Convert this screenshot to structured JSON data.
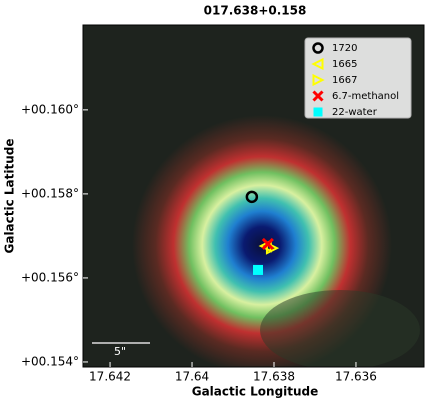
{
  "chart_data": {
    "type": "scatter",
    "title": "017.638+0.158",
    "xlabel": "Galactic Longitude",
    "ylabel": "Galactic Latitude",
    "xlim": [
      17.64266,
      17.63434
    ],
    "ylim": [
      0.15388,
      0.16202
    ],
    "xticks": [
      17.642,
      17.64,
      17.638,
      17.636
    ],
    "yticks": [
      {
        "value": 0.16,
        "label": "+00.160°"
      },
      {
        "value": 0.158,
        "label": "+00.158°"
      },
      {
        "value": 0.156,
        "label": "+00.156°"
      },
      {
        "value": 0.154,
        "label": "+00.154°"
      }
    ],
    "legend": "upper right",
    "scalebar_label": "5\"",
    "series": [
      {
        "name": "1720",
        "color": "#000000",
        "marker": "circle",
        "x": [
          17.63854
        ],
        "y": [
          0.15793
        ]
      },
      {
        "name": "1665",
        "color": "#ffff00",
        "marker": "triangle-left",
        "x": [
          17.6382
        ],
        "y": [
          0.15676
        ]
      },
      {
        "name": "1667",
        "color": "#ffff00",
        "marker": "triangle-right",
        "x": [
          17.63805
        ],
        "y": [
          0.15671
        ]
      },
      {
        "name": "6.7-methanol",
        "color": "#ff0000",
        "marker": "x",
        "x": [
          17.63815
        ],
        "y": [
          0.15681
        ]
      },
      {
        "name": "22-water",
        "color": "#00ffff",
        "marker": "square",
        "x": [
          17.63839
        ],
        "y": [
          0.15619
        ]
      }
    ]
  }
}
